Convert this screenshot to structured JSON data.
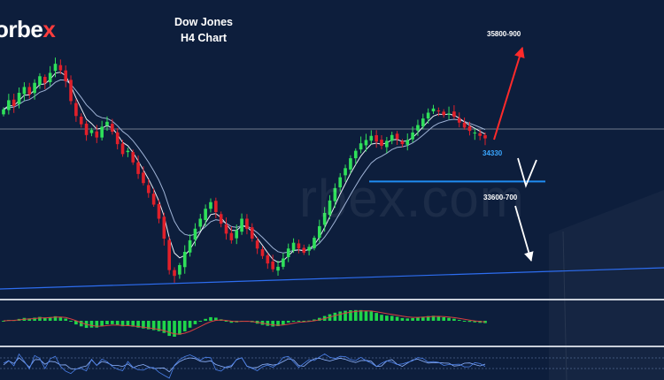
{
  "brand": {
    "text_main": "orbe",
    "text_accent": "x"
  },
  "title": {
    "line1": "Dow Jones",
    "line2": "H4 Chart"
  },
  "watermark": "rbex.com",
  "annotations": {
    "target_upper": "35800-900",
    "support_price": "34330",
    "target_lower": "33600-700"
  },
  "colors": {
    "background": "#0d1e3c",
    "bull_candle": "#2fe05a",
    "bear_candle": "#e0202a",
    "trendline": "#2d6df0",
    "support": "#1f8cf2",
    "target_arrow": "#ff2a2a",
    "macd_hist": "#1fd64a"
  },
  "chart_data": {
    "type": "candlestick",
    "symbol": "Dow Jones",
    "timeframe": "H4",
    "ylim": [
      33000,
      36200
    ],
    "closes": [
      35200,
      35310,
      35240,
      35400,
      35470,
      35380,
      35520,
      35600,
      35520,
      35640,
      35750,
      35670,
      35540,
      35300,
      35120,
      35020,
      34890,
      34950,
      34860,
      34990,
      35050,
      34930,
      34780,
      34660,
      34700,
      34560,
      34420,
      34310,
      34190,
      34050,
      33880,
      33640,
      33260,
      33190,
      33320,
      33480,
      33620,
      33760,
      33880,
      34000,
      34080,
      33960,
      33820,
      33700,
      33620,
      33740,
      33880,
      33760,
      33640,
      33520,
      33430,
      33340,
      33270,
      33300,
      33400,
      33520,
      33590,
      33520,
      33470,
      33540,
      33650,
      33790,
      33950,
      34100,
      34250,
      34380,
      34490,
      34610,
      34700,
      34790,
      34830,
      34880,
      34810,
      34760,
      34820,
      34890,
      34840,
      34780,
      34830,
      34920,
      35010,
      35090,
      35160,
      35210,
      35180,
      35130,
      35150,
      35110,
      35040,
      34980,
      34940,
      34920,
      34880,
      34850
    ],
    "levels": [
      {
        "label": "35800-900",
        "kind": "upside target"
      },
      {
        "label": "34330",
        "kind": "support",
        "value": 34330
      },
      {
        "label": "33600-700",
        "kind": "downside target"
      }
    ],
    "indicators": [
      "moving averages",
      "MACD histogram",
      "oscillator"
    ]
  }
}
